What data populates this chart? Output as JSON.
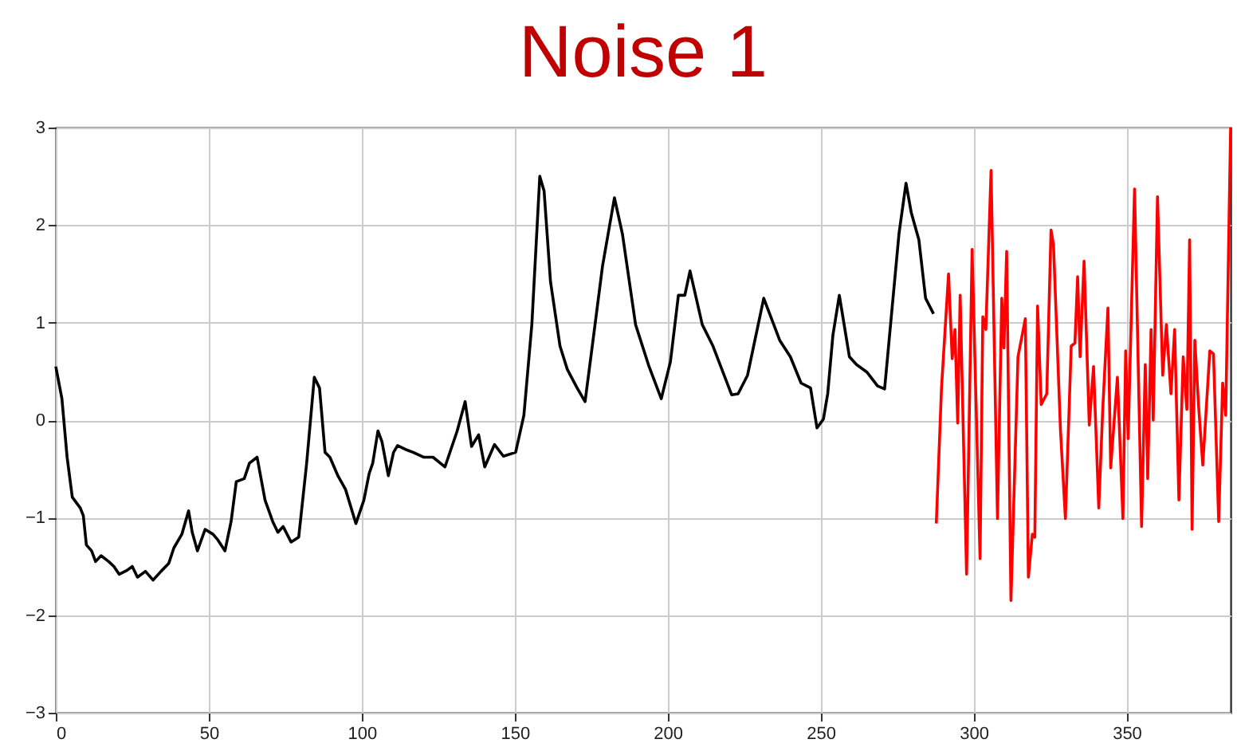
{
  "chart_data": {
    "type": "line",
    "title": "Noise 1",
    "xlim": [
      0,
      384
    ],
    "ylim": [
      -3,
      3
    ],
    "xticks": [
      0,
      50,
      100,
      150,
      200,
      250,
      300,
      350
    ],
    "yticks": [
      -3,
      -2,
      -1,
      0,
      1,
      2,
      3
    ],
    "grid": true,
    "series": [
      {
        "color": "#000000",
        "x": [
          0,
          2,
          3.7,
          5.4,
          8,
          9,
          10,
          11.7,
          13,
          14.8,
          17.3,
          19,
          20.7,
          23.3,
          25,
          26.7,
          29.3,
          31.8,
          34.4,
          36.9,
          38.6,
          41.2,
          43.4,
          44.6,
          46.3,
          48.8,
          51.4,
          53,
          55.3,
          57.3,
          59,
          61.6,
          63.3,
          65.8,
          68.4,
          70.9,
          72.6,
          74.3,
          76.9,
          79.4,
          82,
          84.5,
          86.2,
          88,
          89.6,
          92.2,
          94.7,
          98.1,
          100.7,
          102.4,
          103.6,
          105.3,
          106.6,
          108.7,
          110.4,
          111.7,
          114.3,
          116.8,
          120.2,
          123.3,
          127.2,
          131.2,
          133.8,
          135.9,
          138.2,
          140.2,
          143.4,
          146.3,
          150.3,
          153,
          155.6,
          158.2,
          159.6,
          161.7,
          164.8,
          167.2,
          170.4,
          173,
          175.6,
          178.7,
          182.6,
          185.2,
          189.5,
          193.9,
          197.9,
          200.9,
          203.5,
          205.6,
          207.3,
          211.3,
          214.8,
          220.9,
          223,
          226.1,
          231.4,
          236.6,
          240.1,
          243.6,
          246.7,
          248.8,
          250.9,
          252.3,
          254,
          256.1,
          259.4,
          261.7,
          265.2,
          268.6,
          270.9,
          275.6,
          277.9,
          279.6,
          282.1,
          284.3,
          286.9
        ],
        "values": [
          0.55,
          0.22,
          -0.38,
          -0.79,
          -0.9,
          -0.98,
          -1.28,
          -1.34,
          -1.45,
          -1.39,
          -1.45,
          -1.5,
          -1.58,
          -1.54,
          -1.5,
          -1.61,
          -1.55,
          -1.64,
          -1.55,
          -1.47,
          -1.31,
          -1.17,
          -0.93,
          -1.15,
          -1.34,
          -1.12,
          -1.17,
          -1.23,
          -1.34,
          -1.04,
          -0.63,
          -0.6,
          -0.44,
          -0.38,
          -0.82,
          -1.04,
          -1.15,
          -1.09,
          -1.25,
          -1.2,
          -0.44,
          0.44,
          0.33,
          -0.33,
          -0.38,
          -0.57,
          -0.71,
          -1.06,
          -0.82,
          -0.55,
          -0.44,
          -0.11,
          -0.22,
          -0.57,
          -0.33,
          -0.26,
          -0.3,
          -0.33,
          -0.38,
          -0.38,
          -0.48,
          -0.11,
          0.19,
          -0.27,
          -0.15,
          -0.48,
          -0.25,
          -0.37,
          -0.33,
          0.05,
          0.98,
          2.5,
          2.35,
          1.42,
          0.76,
          0.52,
          0.33,
          0.19,
          0.82,
          1.58,
          2.28,
          1.91,
          0.98,
          0.55,
          0.22,
          0.6,
          1.28,
          1.28,
          1.53,
          0.98,
          0.76,
          0.26,
          0.27,
          0.46,
          1.25,
          0.82,
          0.65,
          0.38,
          0.33,
          -0.08,
          0.01,
          0.27,
          0.87,
          1.28,
          0.65,
          0.57,
          0.49,
          0.35,
          0.32,
          1.91,
          2.43,
          2.13,
          1.85,
          1.25,
          1.09
        ]
      },
      {
        "color": "#ff0000",
        "x": [
          287.8,
          289.5,
          291.8,
          293,
          293.9,
          294.8,
          295.6,
          297.7,
          299.5,
          302.1,
          303,
          304,
          305.7,
          307.8,
          309.2,
          309.9,
          310.8,
          312.2,
          314.5,
          316.9,
          317.9,
          319.2,
          320,
          320.9,
          322.1,
          323.9,
          325.3,
          326.1,
          328.4,
          330,
          331.9,
          333.1,
          334,
          334.8,
          336.1,
          337.8,
          339.2,
          340.9,
          342.2,
          343.9,
          344.8,
          347,
          348.8,
          349.7,
          350.5,
          352.6,
          354.9,
          356.1,
          356.9,
          358,
          358.7,
          360.1,
          361.8,
          363,
          364.5,
          365.7,
          367.1,
          368.5,
          369.7,
          370.6,
          371.4,
          372.3,
          373.5,
          374.9,
          377.2,
          378.4,
          380.1,
          381.4,
          382.4,
          384
        ],
        "values": [
          -1.06,
          0.33,
          1.5,
          0.63,
          0.93,
          -0.03,
          1.28,
          -1.58,
          1.75,
          -1.42,
          1.06,
          0.93,
          2.56,
          -1.01,
          1.25,
          0.74,
          1.73,
          -1.85,
          0.65,
          1.04,
          -1.61,
          -1.17,
          -1.2,
          1.17,
          0.16,
          0.27,
          1.95,
          1.8,
          -0.11,
          -1.01,
          0.76,
          0.79,
          1.47,
          0.65,
          1.63,
          -0.05,
          0.55,
          -0.9,
          0.11,
          1.15,
          -0.49,
          0.44,
          -1.01,
          0.71,
          -0.19,
          2.37,
          -1.09,
          0.57,
          -0.6,
          0.93,
          0,
          2.29,
          0.46,
          0.98,
          0.27,
          0.93,
          -0.82,
          0.65,
          0.11,
          1.85,
          -1.12,
          0.82,
          0.16,
          -0.46,
          0.71,
          0.68,
          -1.04,
          0.38,
          0.05,
          3
        ]
      }
    ]
  }
}
